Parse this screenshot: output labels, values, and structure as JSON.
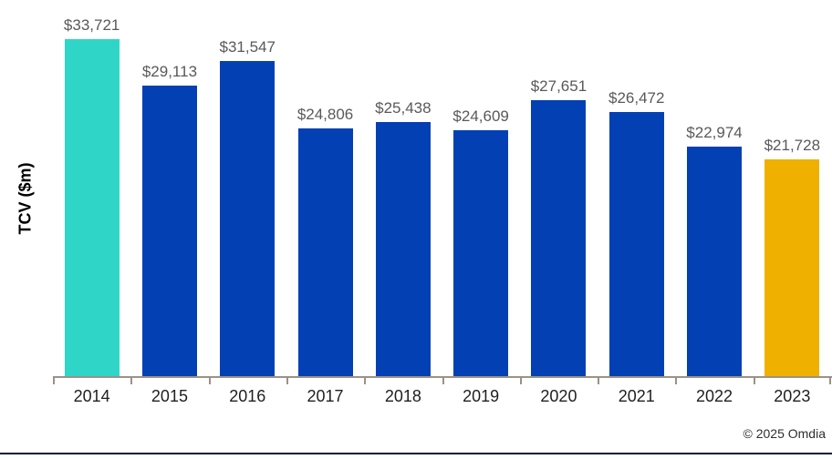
{
  "chart_data": {
    "type": "bar",
    "title": "",
    "xlabel": "",
    "ylabel": "TCV ($m)",
    "categories": [
      "2014",
      "2015",
      "2016",
      "2017",
      "2018",
      "2019",
      "2020",
      "2021",
      "2022",
      "2023"
    ],
    "values": [
      33721,
      29113,
      31547,
      24806,
      25438,
      24609,
      27651,
      26472,
      22974,
      21728
    ],
    "data_labels": [
      "$33,721",
      "$29,113",
      "$31,547",
      "$24,806",
      "$25,438",
      "$24,609",
      "$27,651",
      "$26,472",
      "$22,974",
      "$21,728"
    ],
    "bar_colors": [
      "#2fd6c7",
      "#0240b4",
      "#0240b4",
      "#0240b4",
      "#0240b4",
      "#0240b4",
      "#0240b4",
      "#0240b4",
      "#0240b4",
      "#f0b000"
    ],
    "ylim": [
      0,
      35000
    ],
    "grid": false,
    "legend": null
  },
  "colors": {
    "highlight_first": "#2fd6c7",
    "series_blue": "#0240b4",
    "highlight_last": "#f0b000",
    "axis_line": "#9b9187",
    "value_label": "#595959",
    "year_label": "#1f1f1f",
    "footer_rule": "#001a33"
  },
  "footer": {
    "copyright": "© 2025 Omdia"
  }
}
